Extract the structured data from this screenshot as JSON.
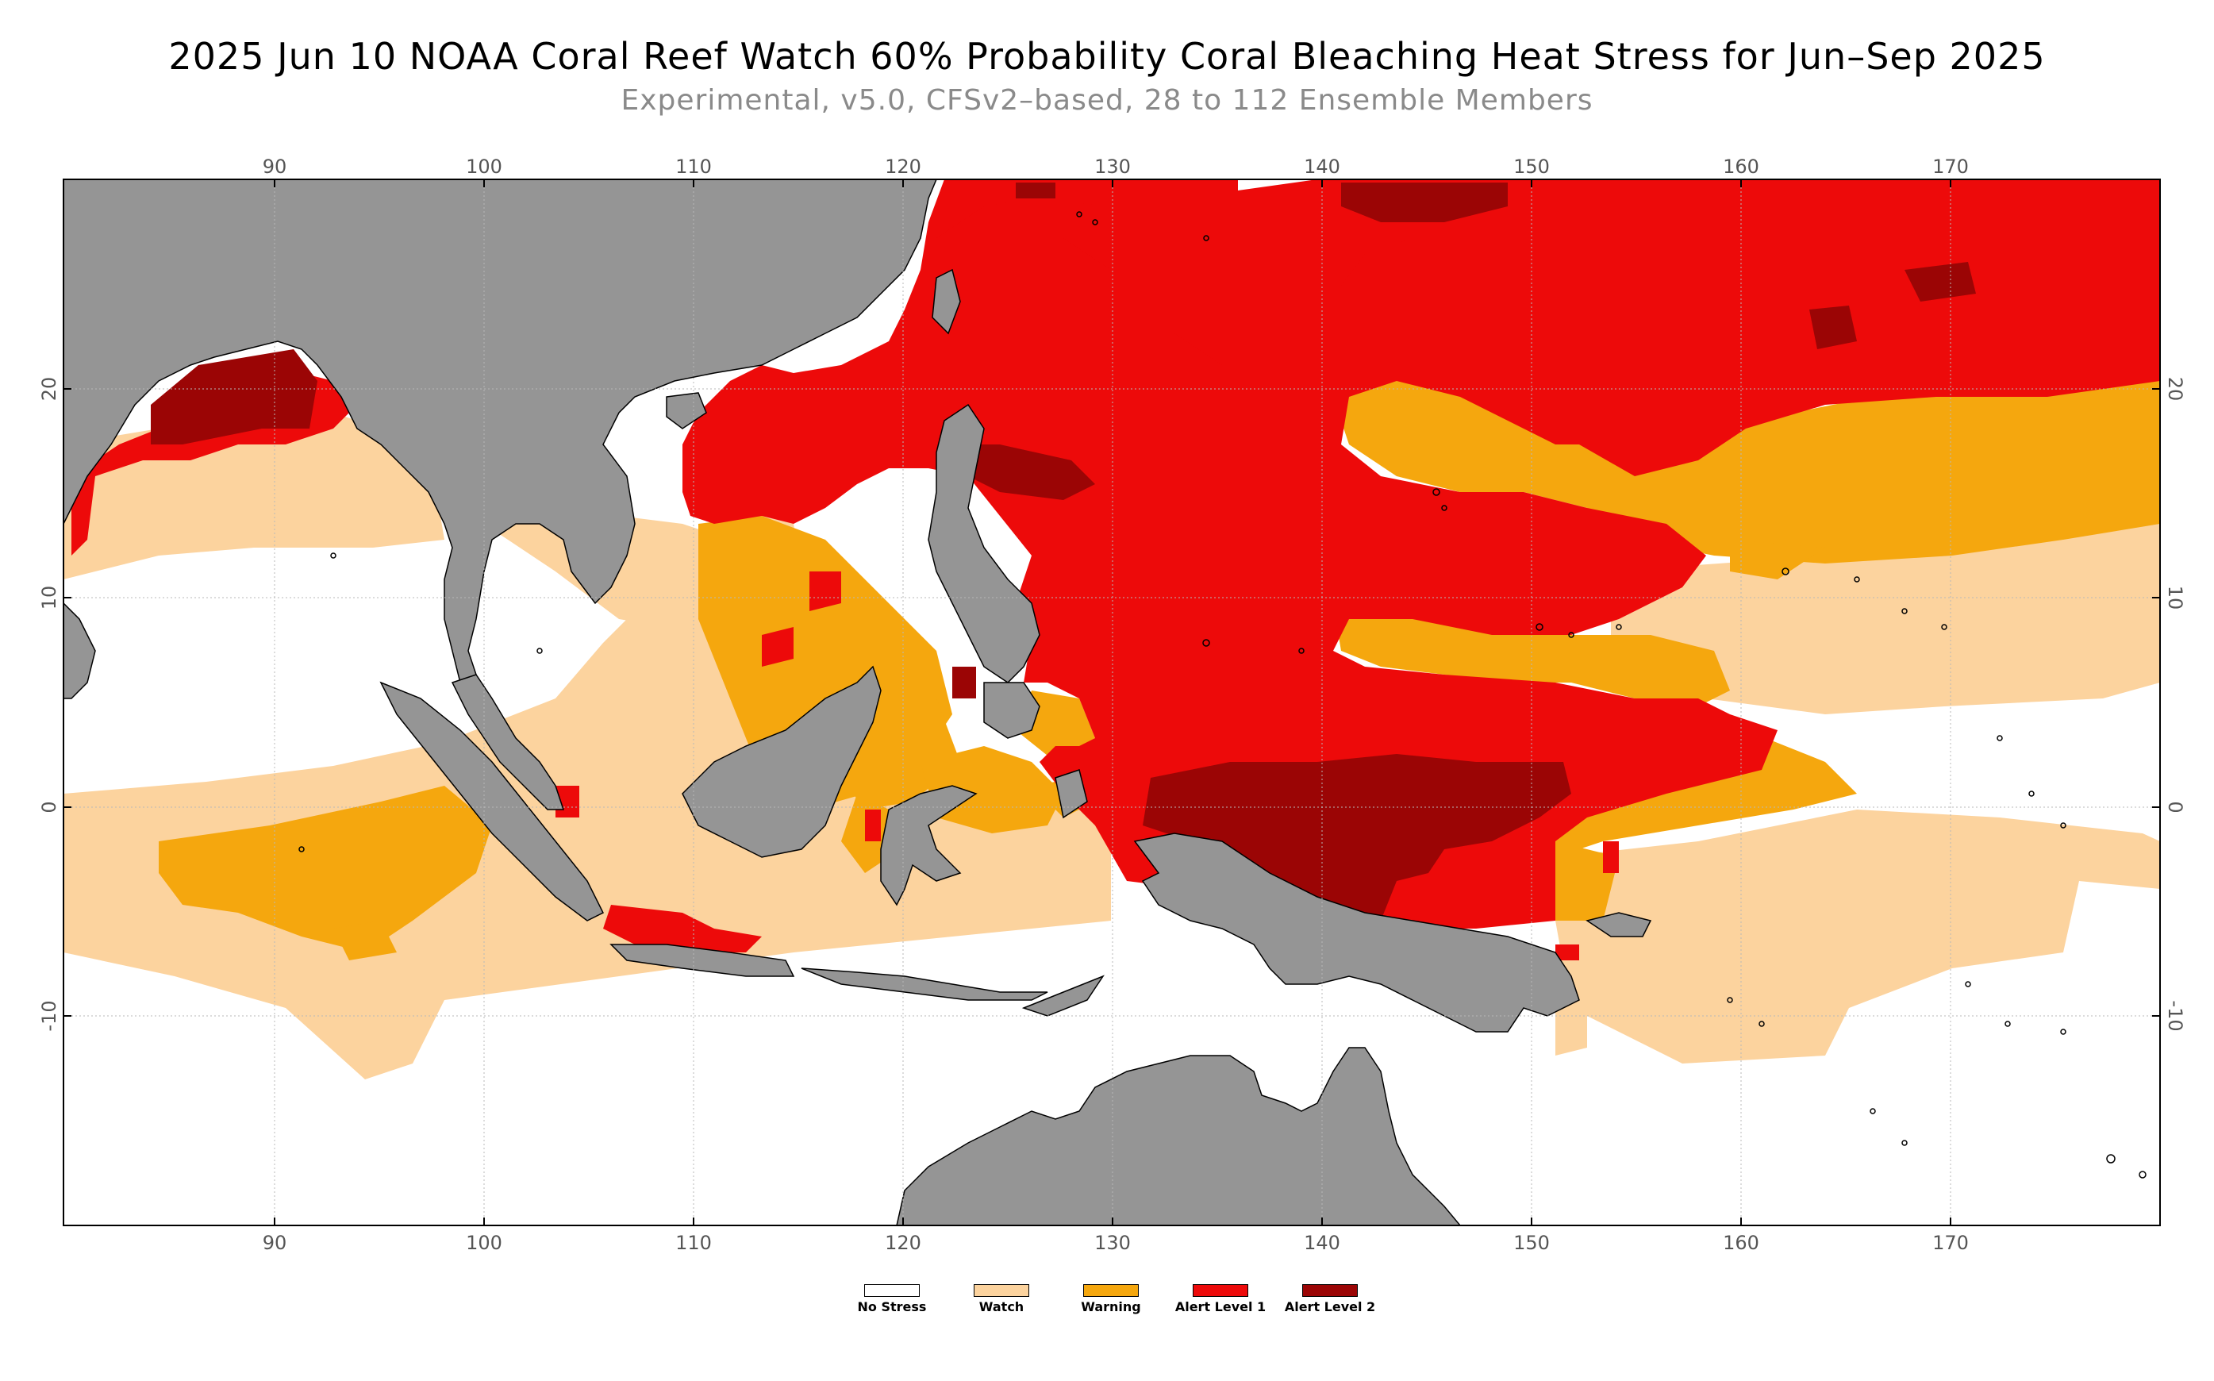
{
  "title": "2025 Jun 10 NOAA Coral Reef Watch 60% Probability Coral Bleaching Heat Stress for Jun–Sep 2025",
  "subtitle": "Experimental, v5.0, CFSv2–based, 28 to 112 Ensemble Members",
  "map_axes": {
    "lon_ticks": [
      "90",
      "100",
      "110",
      "120",
      "130",
      "140",
      "150",
      "160",
      "170"
    ],
    "lat_ticks": [
      "20",
      "10",
      "0",
      "-10"
    ],
    "lon_range": [
      80,
      180
    ],
    "lat_range": [
      -20,
      30
    ]
  },
  "colors": {
    "land": "#959595",
    "no_stress": "#ffffff",
    "watch": "#fcd39e",
    "warning": "#f5a70e",
    "alert1": "#ed0a0a",
    "alert2": "#9b0505"
  },
  "legend": [
    {
      "label": "No Stress",
      "color": "#ffffff"
    },
    {
      "label": "Watch",
      "color": "#fcd39e"
    },
    {
      "label": "Warning",
      "color": "#f5a70e"
    },
    {
      "label": "Alert Level 1",
      "color": "#ed0a0a"
    },
    {
      "label": "Alert Level 2",
      "color": "#9b0505"
    }
  ]
}
